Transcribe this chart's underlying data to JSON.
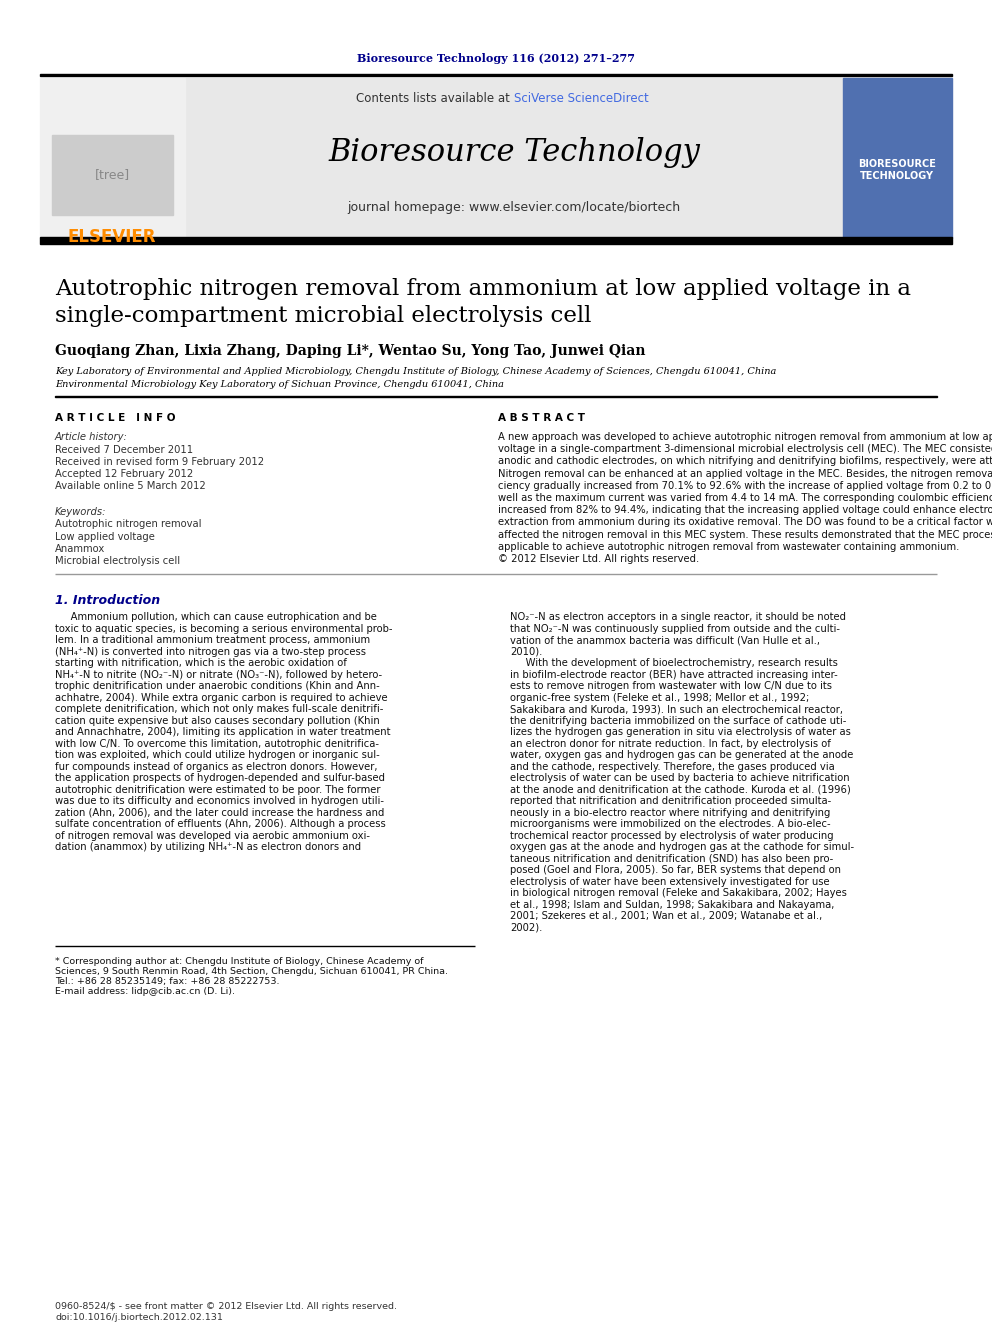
{
  "page_bg": "#ffffff",
  "top_journal_text": "Bioresource Technology 116 (2012) 271–277",
  "top_journal_color": "#00008B",
  "header_bg": "#e8e8e8",
  "header_contents_plain": "Contents lists available at ",
  "header_contents_link": "SciVerse ScienceDirect",
  "header_sciverse_color": "#4169E1",
  "header_journal_title": "Bioresource Technology",
  "header_journal_url": "journal homepage: www.elsevier.com/locate/biortech",
  "elsevier_color": "#FF8C00",
  "article_title_line1": "Autotrophic nitrogen removal from ammonium at low applied voltage in a",
  "article_title_line2": "single-compartment microbial electrolysis cell",
  "authors": "Guoqiang Zhan, Lixia Zhang, Daping Li*, Wentao Su, Yong Tao, Junwei Qian",
  "affil1": "Key Laboratory of Environmental and Applied Microbiology, Chengdu Institute of Biology, Chinese Academy of Sciences, Chengdu 610041, China",
  "affil2": "Environmental Microbiology Key Laboratory of Sichuan Province, Chengdu 610041, China",
  "article_info_header": "A R T I C L E   I N F O",
  "article_history_label": "Article history:",
  "received1": "Received 7 December 2011",
  "received2": "Received in revised form 9 February 2012",
  "accepted": "Accepted 12 February 2012",
  "available": "Available online 5 March 2012",
  "keywords_label": "Keywords:",
  "kw1": "Autotrophic nitrogen removal",
  "kw2": "Low applied voltage",
  "kw3": "Anammox",
  "kw4": "Microbial electrolysis cell",
  "abstract_header": "A B S T R A C T",
  "abstract_text": "A new approach was developed to achieve autotrophic nitrogen removal from ammonium at low applied\nvoltage in a single-compartment 3-dimensional microbial electrolysis cell (MEC). The MEC consisted of\nanodic and cathodic electrodes, on which nitrifying and denitrifying biofilms, respectively, were attached.\nNitrogen removal can be enhanced at an applied voltage in the MEC. Besides, the nitrogen removal effi-\nciency gradually increased from 70.1% to 92.6% with the increase of applied voltage from 0.2 to 0.4 V, as\nwell as the maximum current was varied from 4.4 to 14 mA. The corresponding coulombic efficiency also\nincreased from 82% to 94.4%, indicating that the increasing applied voltage could enhance electron\nextraction from ammonium during its oxidative removal. The DO was found to be a critical factor which\naffected the nitrogen removal in this MEC system. These results demonstrated that the MEC process was\napplicable to achieve autotrophic nitrogen removal from wastewater containing ammonium.\n© 2012 Elsevier Ltd. All rights reserved.",
  "section1_header": "1. Introduction",
  "section1_header_color": "#00008B",
  "intro_text_left": [
    "     Ammonium pollution, which can cause eutrophication and be",
    "toxic to aquatic species, is becoming a serious environmental prob-",
    "lem. In a traditional ammonium treatment process, ammonium",
    "(NH₄⁺-N) is converted into nitrogen gas via a two-step process",
    "starting with nitrification, which is the aerobic oxidation of",
    "NH₄⁺-N to nitrite (NO₂⁻-N) or nitrate (NO₃⁻-N), followed by hetero-",
    "trophic denitrification under anaerobic conditions (Khin and Ann-",
    "achhatre, 2004). While extra organic carbon is required to achieve",
    "complete denitrification, which not only makes full-scale denitrifi-",
    "cation quite expensive but also causes secondary pollution (Khin",
    "and Annachhatre, 2004), limiting its application in water treatment",
    "with low C/N. To overcome this limitation, autotrophic denitrifica-",
    "tion was exploited, which could utilize hydrogen or inorganic sul-",
    "fur compounds instead of organics as electron donors. However,",
    "the application prospects of hydrogen-depended and sulfur-based",
    "autotrophic denitrification were estimated to be poor. The former",
    "was due to its difficulty and economics involved in hydrogen utili-",
    "zation (Ahn, 2006), and the later could increase the hardness and",
    "sulfate concentration of effluents (Ahn, 2006). Although a process",
    "of nitrogen removal was developed via aerobic ammonium oxi-",
    "dation (anammox) by utilizing NH₄⁺-N as electron donors and"
  ],
  "intro_text_right": [
    "NO₂⁻-N as electron acceptors in a single reactor, it should be noted",
    "that NO₂⁻-N was continuously supplied from outside and the culti-",
    "vation of the anammox bacteria was difficult (Van Hulle et al.,",
    "2010).",
    "     With the development of bioelectrochemistry, research results",
    "in biofilm-electrode reactor (BER) have attracted increasing inter-",
    "ests to remove nitrogen from wastewater with low C/N due to its",
    "organic-free system (Feleke et al., 1998; Mellor et al., 1992;",
    "Sakakibara and Kuroda, 1993). In such an electrochemical reactor,",
    "the denitrifying bacteria immobilized on the surface of cathode uti-",
    "lizes the hydrogen gas generation in situ via electrolysis of water as",
    "an electron donor for nitrate reduction. In fact, by electrolysis of",
    "water, oxygen gas and hydrogen gas can be generated at the anode",
    "and the cathode, respectively. Therefore, the gases produced via",
    "electrolysis of water can be used by bacteria to achieve nitrification",
    "at the anode and denitrification at the cathode. Kuroda et al. (1996)",
    "reported that nitrification and denitrification proceeded simulta-",
    "neously in a bio-electro reactor where nitrifying and denitrifying",
    "microorganisms were immobilized on the electrodes. A bio-elec-",
    "trochemical reactor processed by electrolysis of water producing",
    "oxygen gas at the anode and hydrogen gas at the cathode for simul-",
    "taneous nitrification and denitrification (SND) has also been pro-",
    "posed (Goel and Flora, 2005). So far, BER systems that depend on",
    "electrolysis of water have been extensively investigated for use",
    "in biological nitrogen removal (Feleke and Sakakibara, 2002; Hayes",
    "et al., 1998; Islam and Suldan, 1998; Sakakibara and Nakayama,",
    "2001; Szekeres et al., 2001; Wan et al., 2009; Watanabe et al.,",
    "2002)."
  ],
  "footnote_lines": [
    "* Corresponding author at: Chengdu Institute of Biology, Chinese Academy of",
    "Sciences, 9 South Renmin Road, 4th Section, Chengdu, Sichuan 610041, PR China.",
    "Tel.: +86 28 85235149; fax: +86 28 85222753.",
    "E-mail address: lidp@cib.ac.cn (D. Li)."
  ],
  "footer_issn": "0960-8524/$ - see front matter © 2012 Elsevier Ltd. All rights reserved.",
  "footer_doi": "doi:10.1016/j.biortech.2012.02.131"
}
